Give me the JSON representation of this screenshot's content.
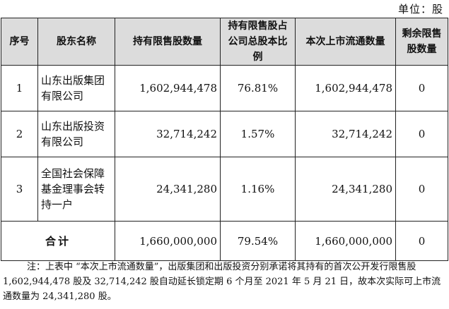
{
  "unit_label": "单位：股",
  "table": {
    "headers": [
      "序号",
      "股东名称",
      "持有限售股数量",
      "持有限售股占公司总股本比例",
      "本次上市流通数量",
      "剩余限售股数量"
    ],
    "rows": [
      {
        "no": "1",
        "shareholder": "山东出版集团有限公司",
        "restricted_shares": "1,602,944,478",
        "ratio": "76.81%",
        "listed_shares": "1,602,944,478",
        "remaining": "0"
      },
      {
        "no": "2",
        "shareholder": "山东出版投资有限公司",
        "restricted_shares": "32,714,242",
        "ratio": "1.57%",
        "listed_shares": "32,714,242",
        "remaining": "0"
      },
      {
        "no": "3",
        "shareholder": "全国社会保障基金理事会转持一户",
        "restricted_shares": "24,341,280",
        "ratio": "1.16%",
        "listed_shares": "24,341,280",
        "remaining": "0"
      }
    ],
    "total": {
      "label": "合计",
      "restricted_shares": "1,660,000,000",
      "ratio": "79.54%",
      "listed_shares": "1,660,000,000",
      "remaining": "0"
    }
  },
  "note": "注：上表中 “本次上市流通数量”，出版集团和出版投资分别承诺将其持有的首次公开发行限售股 1,602,944,478 股及 32,714,242 股自动延长锁定期 6 个月至 2021 年 5 月 21 日，故本次实际可上市流通数量为 24,341,280 股。"
}
